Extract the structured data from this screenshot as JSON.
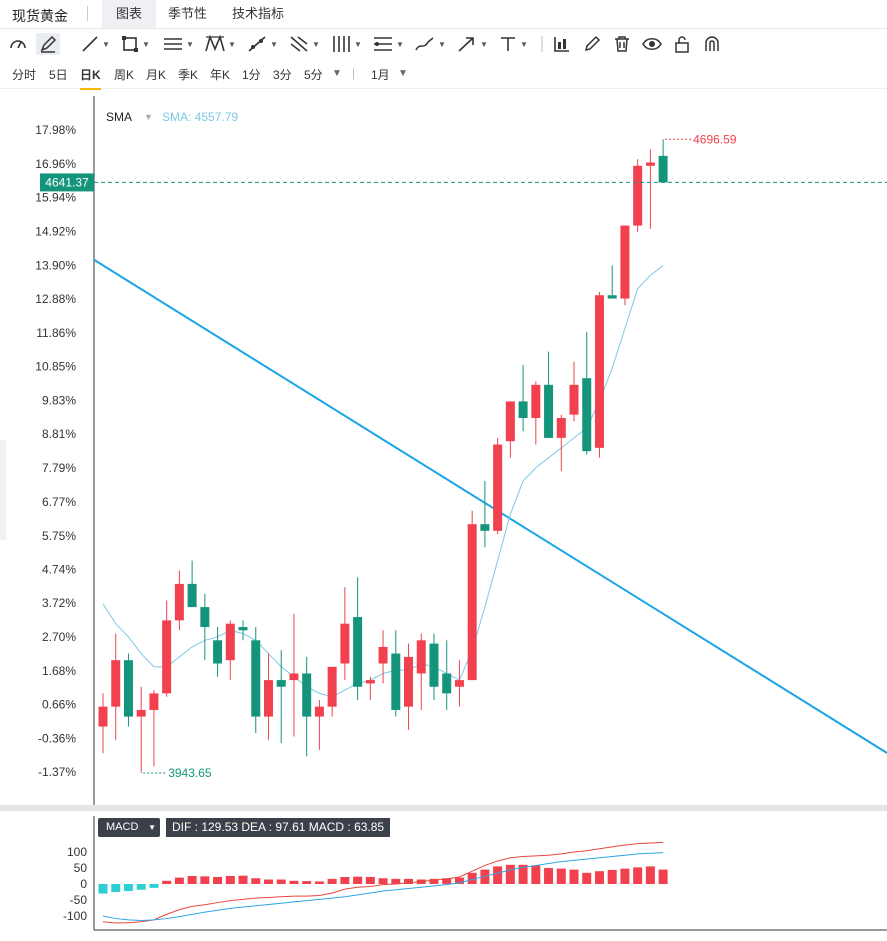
{
  "header": {
    "title": "现货黄金",
    "tabs": [
      {
        "label": "图表",
        "active": true
      },
      {
        "label": "季节性",
        "active": false
      },
      {
        "label": "技术指标",
        "active": false
      }
    ]
  },
  "toolbar": {
    "tools": [
      "speed-icon",
      "pen-icon",
      "line-icon",
      "rect-icon",
      "parallel-lines-icon",
      "pattern-icon",
      "segment-icon",
      "fork-icon",
      "bars-icon",
      "fib-icon",
      "brush-icon",
      "arrow-icon",
      "text-icon",
      "indicator-icon",
      "pencil-icon",
      "trash-icon",
      "eye-icon",
      "lock-icon",
      "magnet-icon"
    ]
  },
  "periods": {
    "items": [
      {
        "label": "分时",
        "active": false
      },
      {
        "label": "5日",
        "active": false
      },
      {
        "label": "日K",
        "active": true
      },
      {
        "label": "周K",
        "active": false
      },
      {
        "label": "月K",
        "active": false
      },
      {
        "label": "季K",
        "active": false
      },
      {
        "label": "年K",
        "active": false
      },
      {
        "label": "1分",
        "active": false
      },
      {
        "label": "3分",
        "active": false
      },
      {
        "label": "5分",
        "active": false
      },
      {
        "label": "1月",
        "active": false
      }
    ]
  },
  "indicator": {
    "sma_label": "SMA",
    "sma_value": "SMA: 4557.79",
    "macd_label": "MACD",
    "macd_values": "DIF : 129.53  DEA : 97.61  MACD : 63.85"
  },
  "colors": {
    "up": "#f2414e",
    "down": "#14957b",
    "sma": "#7cc8e6",
    "trendline": "#1aa5e8",
    "current_price": "#14957b"
  },
  "chart_data": {
    "type": "candlestick",
    "y_axis_labels": [
      "17.98%",
      "16.96%",
      "15.94%",
      "14.92%",
      "13.90%",
      "12.88%",
      "11.86%",
      "10.85%",
      "9.83%",
      "8.81%",
      "7.79%",
      "6.77%",
      "5.75%",
      "4.74%",
      "3.72%",
      "2.70%",
      "1.68%",
      "0.66%",
      "-0.36%",
      "-1.37%"
    ],
    "current_price_label": "4641.37",
    "high_marker": "4696.59",
    "low_marker": "3943.65",
    "ohlc_pct": [
      [
        0.0,
        1.0,
        -0.8,
        0.6
      ],
      [
        0.6,
        2.8,
        -0.4,
        2.0
      ],
      [
        2.0,
        2.2,
        0.0,
        0.3
      ],
      [
        0.3,
        1.2,
        -1.4,
        0.5
      ],
      [
        0.5,
        1.1,
        -1.2,
        1.0
      ],
      [
        1.0,
        3.8,
        0.9,
        3.2
      ],
      [
        3.2,
        4.7,
        2.9,
        4.3
      ],
      [
        4.3,
        5.0,
        3.8,
        3.6
      ],
      [
        3.6,
        4.0,
        2.0,
        3.0
      ],
      [
        2.6,
        3.0,
        1.5,
        1.9
      ],
      [
        2.0,
        3.2,
        1.4,
        3.1
      ],
      [
        3.0,
        3.2,
        2.6,
        2.9
      ],
      [
        2.6,
        3.0,
        -0.2,
        0.3
      ],
      [
        0.3,
        2.2,
        -0.4,
        1.4
      ],
      [
        1.4,
        2.3,
        -0.5,
        1.2
      ],
      [
        1.4,
        3.4,
        -0.3,
        1.6
      ],
      [
        1.6,
        2.1,
        -0.9,
        0.3
      ],
      [
        0.3,
        0.8,
        -0.7,
        0.6
      ],
      [
        0.6,
        1.1,
        0.3,
        1.8
      ],
      [
        1.9,
        4.2,
        1.4,
        3.1
      ],
      [
        3.3,
        4.5,
        0.8,
        1.2
      ],
      [
        1.3,
        1.5,
        0.8,
        1.4
      ],
      [
        1.9,
        2.9,
        1.3,
        2.4
      ],
      [
        2.2,
        2.9,
        0.3,
        0.5
      ],
      [
        0.6,
        2.5,
        -0.1,
        2.1
      ],
      [
        1.6,
        2.8,
        0.5,
        2.6
      ],
      [
        2.5,
        2.8,
        0.8,
        1.2
      ],
      [
        1.6,
        2.6,
        0.5,
        1.0
      ],
      [
        1.2,
        2.0,
        0.6,
        1.4
      ],
      [
        1.4,
        6.5,
        1.4,
        6.1
      ],
      [
        6.1,
        7.4,
        5.4,
        5.9
      ],
      [
        5.9,
        8.7,
        5.8,
        8.5
      ],
      [
        8.6,
        9.8,
        8.1,
        9.8
      ],
      [
        9.8,
        10.9,
        8.9,
        9.3
      ],
      [
        9.3,
        10.4,
        8.5,
        10.3
      ],
      [
        10.3,
        11.3,
        8.7,
        8.7
      ],
      [
        8.7,
        9.4,
        7.7,
        9.3
      ],
      [
        9.4,
        11.0,
        9.2,
        10.3
      ],
      [
        10.5,
        11.9,
        8.2,
        8.3
      ],
      [
        8.4,
        13.1,
        8.1,
        13.0
      ],
      [
        13.0,
        13.9,
        13.0,
        12.9
      ],
      [
        12.9,
        15.1,
        12.7,
        15.1
      ],
      [
        15.1,
        17.1,
        14.9,
        16.9
      ],
      [
        16.9,
        17.4,
        15.0,
        17.0
      ],
      [
        17.2,
        17.7,
        16.7,
        16.4
      ]
    ],
    "sma_pct": [
      3.7,
      3.1,
      2.7,
      2.2,
      1.8,
      1.8,
      2.1,
      2.4,
      2.6,
      2.7,
      2.9,
      2.8,
      2.6,
      2.2,
      1.8,
      1.5,
      1.2,
      1.0,
      0.9,
      1.1,
      1.3,
      1.4,
      1.6,
      1.7,
      1.7,
      1.9,
      1.8,
      1.6,
      1.4,
      2.3,
      3.6,
      5.0,
      6.4,
      7.4,
      7.8,
      8.1,
      8.4,
      8.7,
      9.0,
      9.8,
      10.8,
      12.0,
      13.2,
      13.6,
      13.9
    ],
    "trendline_pct": [
      [
        0,
        13.9
      ],
      [
        44,
        3.4
      ]
    ],
    "macd": {
      "y_axis_labels": [
        "100",
        "50",
        "0",
        "-50",
        "-100"
      ],
      "histogram": [
        -30,
        -25,
        -22,
        -18,
        -12,
        10,
        20,
        25,
        24,
        22,
        25,
        26,
        18,
        14,
        14,
        10,
        9,
        8,
        16,
        22,
        23,
        22,
        18,
        16,
        16,
        14,
        16,
        18,
        20,
        35,
        45,
        55,
        60,
        60,
        58,
        50,
        48,
        45,
        35,
        40,
        44,
        48,
        52,
        55,
        45
      ],
      "dif": [
        -118,
        -122,
        -121,
        -118,
        -112,
        -95,
        -80,
        -70,
        -65,
        -58,
        -52,
        -48,
        -44,
        -42,
        -40,
        -38,
        -38,
        -36,
        -28,
        -16,
        -10,
        -8,
        -2,
        0,
        4,
        8,
        12,
        16,
        22,
        40,
        58,
        72,
        82,
        86,
        88,
        90,
        94,
        100,
        104,
        110,
        116,
        122,
        126,
        128,
        130
      ],
      "dea": [
        -100,
        -108,
        -112,
        -114,
        -112,
        -108,
        -102,
        -95,
        -88,
        -82,
        -76,
        -72,
        -68,
        -64,
        -60,
        -56,
        -52,
        -48,
        -44,
        -40,
        -34,
        -28,
        -22,
        -18,
        -14,
        -10,
        -6,
        -2,
        4,
        14,
        24,
        34,
        44,
        52,
        58,
        64,
        70,
        74,
        78,
        82,
        86,
        90,
        94,
        96,
        98
      ]
    }
  }
}
